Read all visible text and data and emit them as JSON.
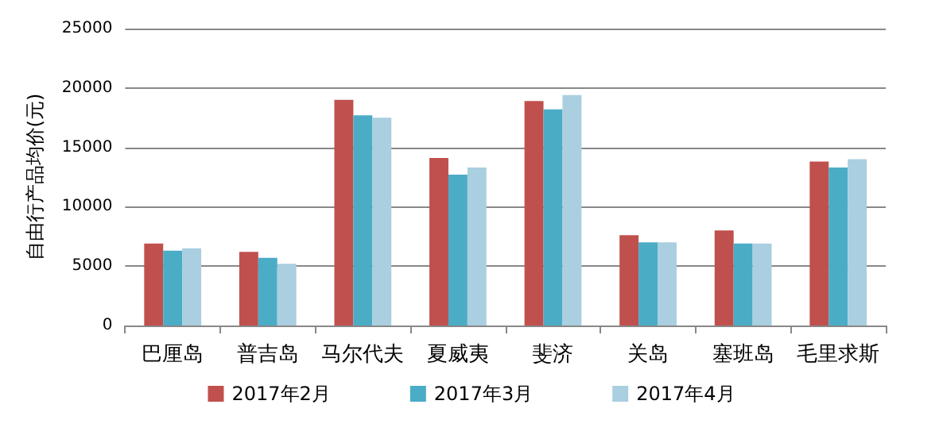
{
  "chart_data": {
    "type": "bar",
    "ylabel": "自由行产品均价(元)",
    "categories": [
      "巴厘岛",
      "普吉岛",
      "马尔代夫",
      "夏威夷",
      "斐济",
      "关岛",
      "塞班岛",
      "毛里求斯"
    ],
    "series": [
      {
        "name": "2017年2月",
        "color": "#c0504d",
        "values": [
          6900,
          6200,
          19000,
          14100,
          18900,
          7600,
          8000,
          13800
        ]
      },
      {
        "name": "2017年3月",
        "color": "#4bacc6",
        "values": [
          6300,
          5700,
          17700,
          12700,
          18200,
          7000,
          6900,
          13300
        ]
      },
      {
        "name": "2017年4月",
        "color": "#a9cfe0",
        "values": [
          6500,
          5200,
          17500,
          13300,
          19400,
          7000,
          6900,
          14000
        ]
      }
    ],
    "ylim": [
      0,
      25000
    ],
    "yticks": [
      0,
      5000,
      10000,
      15000,
      20000,
      25000
    ],
    "grid": "y",
    "legend": "bottom"
  }
}
